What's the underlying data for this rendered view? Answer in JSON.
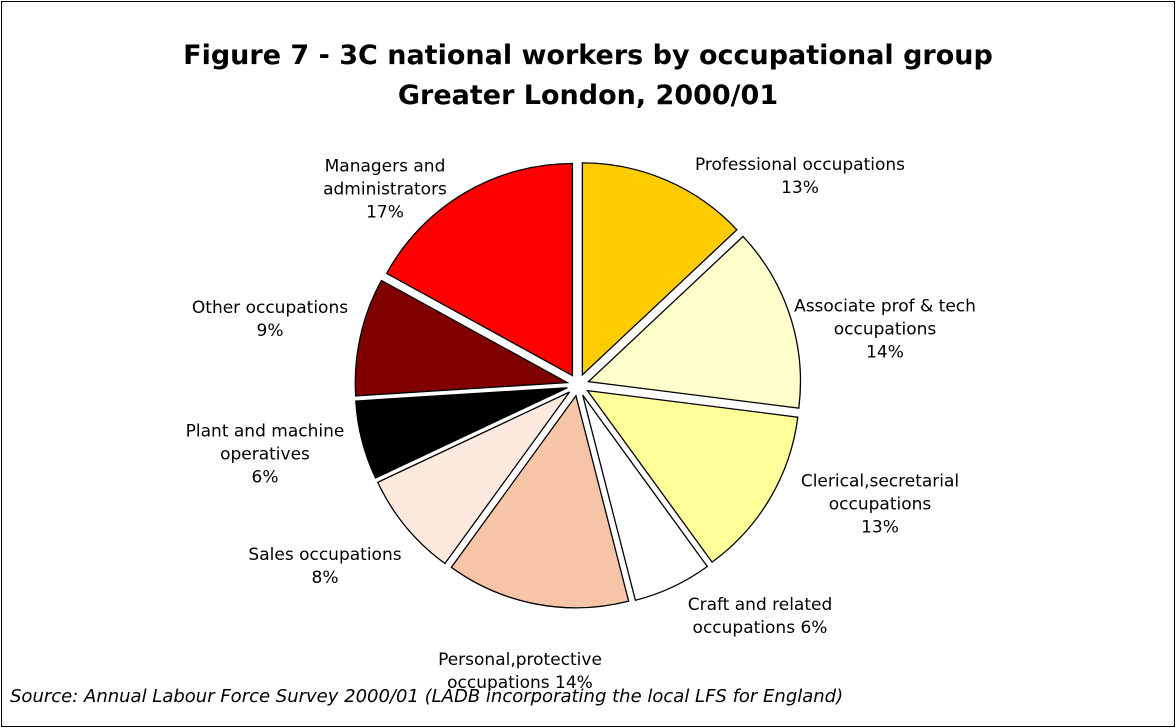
{
  "chart_data": {
    "type": "pie",
    "title": "Figure 7 - 3C national workers by occupational group",
    "subtitle": "Greater London, 2000/01",
    "categories": [
      "Professional occupations",
      "Associate prof & tech occupations",
      "Clerical,secretarial occupations",
      "Craft and related occupations",
      "Personal,protective occupations",
      "Sales occupations",
      "Plant and machine operatives",
      "Other occupations",
      "Managers and administrators"
    ],
    "values": [
      13,
      14,
      13,
      6,
      14,
      8,
      6,
      9,
      17
    ],
    "value_labels": [
      "13%",
      "14%",
      "13%",
      "6%",
      "14%",
      "8%",
      "6%",
      "9%",
      "17%"
    ],
    "colors": [
      "#ffcc00",
      "#ffffcc",
      "#ffff99",
      "#ffffff",
      "#f6c4a6",
      "#fde9de",
      "#000000",
      "#800000",
      "#ff0000"
    ],
    "source": "Source: Annual Labour Force Survey 2000/01 (LADB incorporating the local LFS for England)"
  }
}
